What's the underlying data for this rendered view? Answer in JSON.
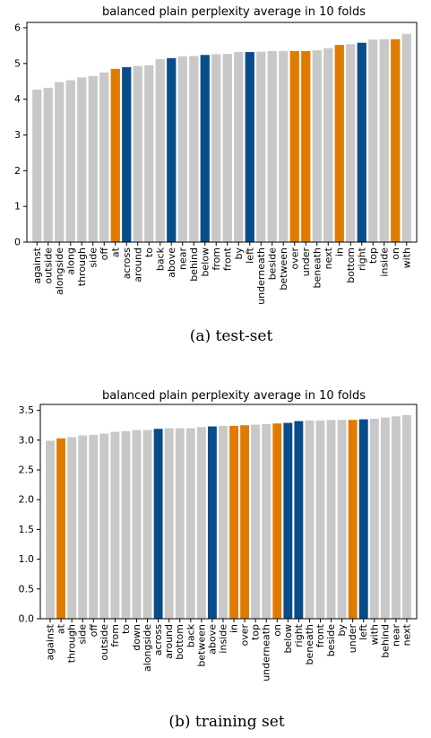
{
  "colors": {
    "default": "#c8c8c8",
    "blue": "#084d8a",
    "orange": "#e07b00"
  },
  "captions": [
    "(a) test-set",
    "(b) training set"
  ],
  "chart_data": [
    {
      "type": "bar",
      "title": "balanced plain perplexity average in 10 folds",
      "ylim": [
        0,
        6.15
      ],
      "yticks": [
        0,
        1,
        2,
        3,
        4,
        5,
        6
      ],
      "ytick_labels": [
        "0",
        "1",
        "2",
        "3",
        "4",
        "5",
        "6"
      ],
      "categories": [
        "against",
        "outside",
        "alongside",
        "along",
        "through",
        "side",
        "off",
        "at",
        "across",
        "around",
        "to",
        "back",
        "above",
        "near",
        "behind",
        "below",
        "from",
        "front",
        "by",
        "left",
        "underneath",
        "beside",
        "between",
        "over",
        "under",
        "beneath",
        "next",
        "in",
        "bottom",
        "right",
        "top",
        "inside",
        "on",
        "with"
      ],
      "values": [
        4.27,
        4.32,
        4.48,
        4.53,
        4.61,
        4.65,
        4.75,
        4.85,
        4.9,
        4.93,
        4.95,
        5.12,
        5.15,
        5.2,
        5.21,
        5.24,
        5.26,
        5.27,
        5.32,
        5.32,
        5.33,
        5.35,
        5.35,
        5.35,
        5.35,
        5.37,
        5.43,
        5.52,
        5.54,
        5.58,
        5.67,
        5.68,
        5.68,
        5.83
      ],
      "highlight": [
        "default",
        "default",
        "default",
        "default",
        "default",
        "default",
        "default",
        "orange",
        "blue",
        "default",
        "default",
        "default",
        "blue",
        "default",
        "default",
        "blue",
        "default",
        "default",
        "default",
        "blue",
        "default",
        "default",
        "default",
        "orange",
        "orange",
        "default",
        "default",
        "orange",
        "default",
        "blue",
        "default",
        "default",
        "orange",
        "default"
      ]
    },
    {
      "type": "bar",
      "title": "balanced plain perplexity average in 10 folds",
      "ylim": [
        0,
        3.6
      ],
      "yticks": [
        0,
        0.5,
        1.0,
        1.5,
        2.0,
        2.5,
        3.0,
        3.5
      ],
      "ytick_labels": [
        "0.0",
        "0.5",
        "1.0",
        "1.5",
        "2.0",
        "2.5",
        "3.0",
        "3.5"
      ],
      "categories": [
        "against",
        "at",
        "through",
        "side",
        "off",
        "outside",
        "from",
        "to",
        "down",
        "alongside",
        "across",
        "around",
        "bottom",
        "back",
        "between",
        "above",
        "inside",
        "in",
        "over",
        "top",
        "underneath",
        "on",
        "below",
        "right",
        "beneath",
        "front",
        "beside",
        "by",
        "under",
        "left",
        "with",
        "behind",
        "near",
        "next"
      ],
      "values": [
        2.99,
        3.03,
        3.05,
        3.08,
        3.09,
        3.11,
        3.14,
        3.15,
        3.17,
        3.17,
        3.19,
        3.2,
        3.2,
        3.2,
        3.22,
        3.23,
        3.24,
        3.24,
        3.25,
        3.26,
        3.27,
        3.28,
        3.29,
        3.32,
        3.33,
        3.33,
        3.34,
        3.34,
        3.34,
        3.35,
        3.36,
        3.38,
        3.4,
        3.42
      ],
      "highlight": [
        "default",
        "orange",
        "default",
        "default",
        "default",
        "default",
        "default",
        "default",
        "default",
        "default",
        "blue",
        "default",
        "default",
        "default",
        "default",
        "blue",
        "default",
        "orange",
        "orange",
        "default",
        "default",
        "orange",
        "blue",
        "blue",
        "default",
        "default",
        "default",
        "default",
        "orange",
        "blue",
        "default",
        "default",
        "default",
        "default"
      ]
    }
  ]
}
